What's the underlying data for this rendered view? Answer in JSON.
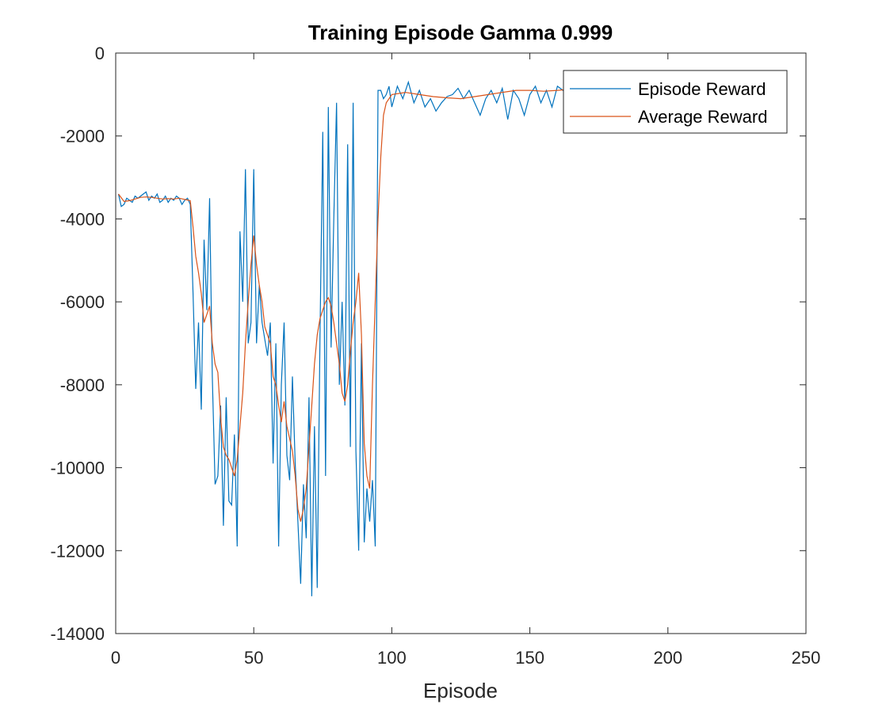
{
  "chart_data": {
    "type": "line",
    "title": "Training Episode Gamma 0.999",
    "xlabel": "Episode",
    "ylabel": "",
    "xlim": [
      0,
      250
    ],
    "ylim": [
      -14000,
      0
    ],
    "xticks": [
      "0",
      "50",
      "100",
      "150",
      "200",
      "250"
    ],
    "yticks": [
      "0",
      "-2000",
      "-4000",
      "-6000",
      "-8000",
      "-10000",
      "-12000",
      "-14000"
    ],
    "grid": false,
    "legend_position": "top-right",
    "series": [
      {
        "name": "Episode Reward",
        "color": "#0072BD",
        "x": [
          1,
          2,
          3,
          4,
          5,
          6,
          7,
          8,
          9,
          10,
          11,
          12,
          13,
          14,
          15,
          16,
          17,
          18,
          19,
          20,
          21,
          22,
          23,
          24,
          25,
          26,
          27,
          28,
          29,
          30,
          31,
          32,
          33,
          34,
          35,
          36,
          37,
          38,
          39,
          40,
          41,
          42,
          43,
          44,
          45,
          46,
          47,
          48,
          49,
          50,
          51,
          52,
          53,
          54,
          55,
          56,
          57,
          58,
          59,
          60,
          61,
          62,
          63,
          64,
          65,
          66,
          67,
          68,
          69,
          70,
          71,
          72,
          73,
          74,
          75,
          76,
          77,
          78,
          79,
          80,
          81,
          82,
          83,
          84,
          85,
          86,
          87,
          88,
          89,
          90,
          91,
          92,
          93,
          94,
          95,
          96,
          97,
          98,
          99,
          100,
          102,
          104,
          106,
          108,
          110,
          112,
          114,
          116,
          118,
          120,
          122,
          124,
          126,
          128,
          130,
          132,
          134,
          136,
          138,
          140,
          142,
          144,
          146,
          148,
          150,
          152,
          154,
          156,
          158,
          160,
          162,
          163
        ],
        "y": [
          -3400,
          -3700,
          -3650,
          -3500,
          -3550,
          -3600,
          -3450,
          -3500,
          -3450,
          -3400,
          -3350,
          -3550,
          -3450,
          -3500,
          -3400,
          -3600,
          -3550,
          -3450,
          -3600,
          -3500,
          -3550,
          -3450,
          -3500,
          -3650,
          -3550,
          -3500,
          -3650,
          -5800,
          -8100,
          -6500,
          -8600,
          -4500,
          -6200,
          -3500,
          -7800,
          -10400,
          -10200,
          -8500,
          -11400,
          -8300,
          -10800,
          -10900,
          -9200,
          -11900,
          -4300,
          -6000,
          -2800,
          -7000,
          -6500,
          -2800,
          -7000,
          -5600,
          -6500,
          -6900,
          -7300,
          -6500,
          -9900,
          -7000,
          -11900,
          -8000,
          -6500,
          -9700,
          -10300,
          -7800,
          -9900,
          -11300,
          -12800,
          -10400,
          -11700,
          -8300,
          -13100,
          -9000,
          -12900,
          -6800,
          -1900,
          -10200,
          -1300,
          -7100,
          -4000,
          -1200,
          -8000,
          -6000,
          -8500,
          -2200,
          -9500,
          -1200,
          -9600,
          -12000,
          -7000,
          -11800,
          -10500,
          -11300,
          -10300,
          -11900,
          -900,
          -900,
          -1100,
          -1000,
          -800,
          -1300,
          -800,
          -1100,
          -700,
          -1200,
          -900,
          -1300,
          -1100,
          -1400,
          -1200,
          -1050,
          -1000,
          -850,
          -1100,
          -900,
          -1200,
          -1500,
          -1100,
          -900,
          -1200,
          -850,
          -1600,
          -900,
          -1100,
          -1500,
          -1000,
          -800,
          -1200,
          -900,
          -1300,
          -800,
          -900,
          -1000
        ]
      },
      {
        "name": "Average Reward",
        "color": "#D95319",
        "x": [
          1,
          3,
          5,
          7,
          9,
          11,
          13,
          15,
          17,
          19,
          21,
          23,
          25,
          27,
          28,
          29,
          30,
          31,
          32,
          33,
          34,
          35,
          36,
          37,
          38,
          39,
          40,
          41,
          42,
          43,
          44,
          45,
          46,
          47,
          48,
          49,
          50,
          51,
          52,
          53,
          54,
          55,
          56,
          57,
          58,
          59,
          60,
          61,
          62,
          63,
          64,
          65,
          66,
          67,
          68,
          69,
          70,
          71,
          72,
          73,
          74,
          75,
          76,
          77,
          78,
          79,
          80,
          81,
          82,
          83,
          84,
          85,
          86,
          87,
          88,
          89,
          90,
          91,
          92,
          93,
          94,
          95,
          96,
          97,
          98,
          100,
          105,
          110,
          115,
          120,
          125,
          130,
          135,
          140,
          145,
          150,
          155,
          160,
          163
        ],
        "y": [
          -3400,
          -3580,
          -3560,
          -3520,
          -3480,
          -3470,
          -3480,
          -3500,
          -3520,
          -3510,
          -3520,
          -3500,
          -3530,
          -3560,
          -4200,
          -4900,
          -5300,
          -5800,
          -6500,
          -6300,
          -6100,
          -7000,
          -7500,
          -7700,
          -8800,
          -9500,
          -9700,
          -9800,
          -10000,
          -10200,
          -9800,
          -9000,
          -8200,
          -7000,
          -6000,
          -5100,
          -4400,
          -5100,
          -5600,
          -6000,
          -6600,
          -6800,
          -7000,
          -7800,
          -8000,
          -8500,
          -8900,
          -8400,
          -9000,
          -9300,
          -9600,
          -10200,
          -11000,
          -11300,
          -11000,
          -10500,
          -9500,
          -8500,
          -7500,
          -6800,
          -6400,
          -6200,
          -6000,
          -5900,
          -6100,
          -6500,
          -7000,
          -7500,
          -8200,
          -8400,
          -8000,
          -7200,
          -6500,
          -6000,
          -5300,
          -6800,
          -9400,
          -10200,
          -10500,
          -8000,
          -6000,
          -4000,
          -2500,
          -1500,
          -1200,
          -1000,
          -950,
          -1000,
          -1050,
          -1080,
          -1100,
          -1050,
          -1000,
          -950,
          -900,
          -900,
          -920,
          -900,
          -880
        ]
      }
    ]
  }
}
